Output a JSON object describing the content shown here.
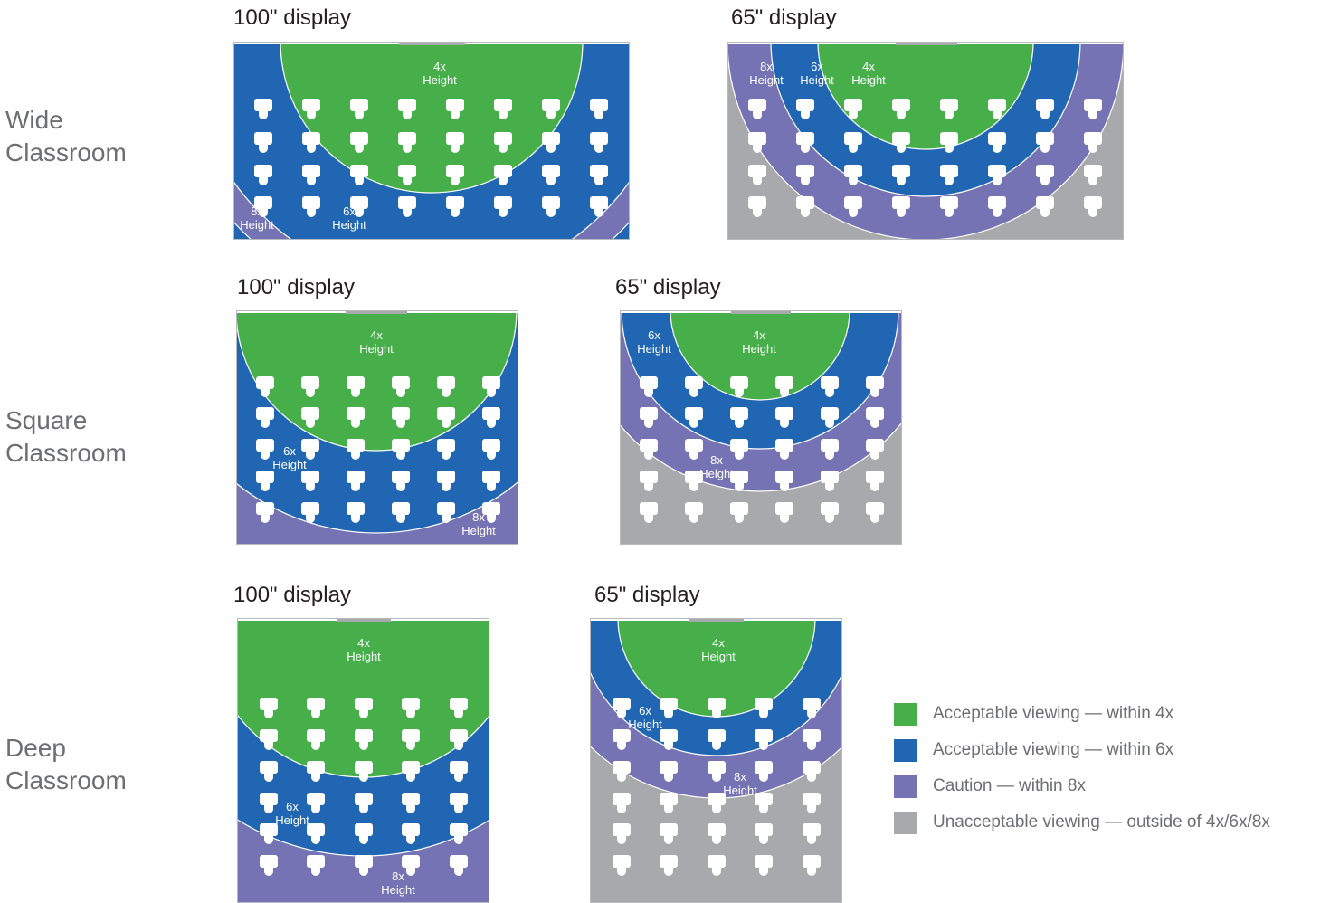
{
  "colors": {
    "within_4x": "#46af4a",
    "within_6x": "#2166b3",
    "within_8x": "#7673b4",
    "outside": "#a7a9ac",
    "seat": "#ffffff",
    "display_bar": "#a7a9ac"
  },
  "zone_label_suffix": "Height",
  "rows": [
    {
      "label_line1": "Wide",
      "label_line2": "Classroom",
      "diagrams": [
        {
          "title": "100\" display",
          "zones": {
            "four_x": "4x",
            "six_x": "6x",
            "eight_x": "8x"
          }
        },
        {
          "title": "65\" display",
          "zones": {
            "four_x": "4x",
            "six_x": "6x",
            "eight_x": "8x"
          }
        }
      ]
    },
    {
      "label_line1": "Square",
      "label_line2": "Classroom",
      "diagrams": [
        {
          "title": "100\" display",
          "zones": {
            "four_x": "4x",
            "six_x": "6x",
            "eight_x": "8x"
          }
        },
        {
          "title": "65\" display",
          "zones": {
            "four_x": "4x",
            "six_x": "6x",
            "eight_x": "8x"
          }
        }
      ]
    },
    {
      "label_line1": "Deep",
      "label_line2": "Classroom",
      "diagrams": [
        {
          "title": "100\" display",
          "zones": {
            "four_x": "4x",
            "six_x": "6x",
            "eight_x": "8x"
          }
        },
        {
          "title": "65\" display",
          "zones": {
            "four_x": "4x",
            "six_x": "6x",
            "eight_x": "8x"
          }
        }
      ]
    }
  ],
  "legend": [
    {
      "label": "Acceptable viewing — within 4x",
      "color": "#46af4a"
    },
    {
      "label": "Acceptable viewing — within 6x",
      "color": "#2166b3"
    },
    {
      "label": "Caution — within 8x",
      "color": "#7673b4"
    },
    {
      "label": "Unacceptable viewing — outside of 4x/6x/8x",
      "color": "#a7a9ac"
    }
  ]
}
